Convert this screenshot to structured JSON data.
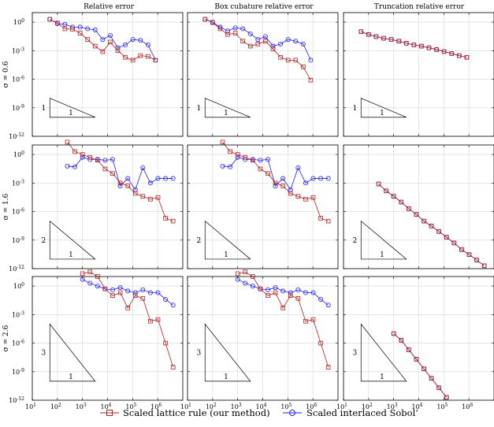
{
  "chart_data": {
    "type": "line",
    "column_titles": [
      "Relative error",
      "Box cubature relative error",
      "Truncation relative error"
    ],
    "row_labels": [
      "σ = 0.6",
      "σ = 1.6",
      "σ = 2.6"
    ],
    "x_scale": "log",
    "y_scale": "log",
    "xlim": [
      10,
      10000000
    ],
    "ylim": [
      1e-12,
      10
    ],
    "x_ticks": [
      "10^1",
      "10^2",
      "10^3",
      "10^4",
      "10^5",
      "10^6"
    ],
    "y_ticks": [
      "10^-12",
      "10^-9",
      "10^-6",
      "10^-3",
      "10^0"
    ],
    "grid": true,
    "legend_position": "bottom-center",
    "series_names": [
      "Scaled lattice rule (our method)",
      "Scaled interlaced Sobol’"
    ],
    "series_colors": [
      "#b22222",
      "#2020ff"
    ],
    "panels": [
      {
        "row": 0,
        "col": 0,
        "triangle": {
          "label_h": "1",
          "label_v": "1",
          "x0": 50,
          "x1": 3200,
          "y_top": 1e-08,
          "y_bottom": 1e-10
        },
        "series": [
          {
            "x": [
              50,
              100,
              200,
              400,
              800,
              1600,
              3200,
              6400,
              12800,
              25600,
              51200,
              102400,
              204800,
              409600,
              819200
            ],
            "y": [
              2,
              0.8,
              0.2,
              0.18,
              0.07,
              0.015,
              0.003,
              0.0008,
              0.008,
              0.001,
              0.0002,
              0.0001,
              0.0003,
              0.00025,
              0.0001
            ]
          },
          {
            "x": [
              50,
              100,
              200,
              400,
              800,
              1600,
              3200,
              6400,
              12800,
              25600,
              51200,
              102400,
              204800,
              409600,
              819200
            ],
            "y": [
              2,
              0.7,
              0.6,
              0.3,
              0.3,
              0.2,
              0.15,
              0.015,
              0.04,
              0.002,
              0.004,
              0.015,
              0.012,
              0.004,
              0.0001
            ]
          }
        ]
      },
      {
        "row": 0,
        "col": 1,
        "triangle": {
          "label_h": "1",
          "label_v": "1",
          "x0": 50,
          "x1": 3200,
          "y_top": 1e-08,
          "y_bottom": 1e-10
        },
        "series": [
          {
            "x": [
              50,
              100,
              200,
              400,
              800,
              1600,
              3200,
              6400,
              12800,
              25600,
              51200,
              102400,
              204800,
              409600,
              819200
            ],
            "y": [
              2,
              0.9,
              0.2,
              0.05,
              0.07,
              0.01,
              0.003,
              0.005,
              0.01,
              0.0015,
              0.0002,
              0.0001,
              0.0001,
              2e-05,
              8e-07
            ]
          },
          {
            "x": [
              50,
              100,
              200,
              400,
              800,
              1600,
              3200,
              6400,
              12800,
              25600,
              51200,
              102400,
              204800,
              409600,
              819200
            ],
            "y": [
              2,
              1,
              0.3,
              0.12,
              0.25,
              0.2,
              0.06,
              0.015,
              0.03,
              0.003,
              0.005,
              0.015,
              0.01,
              0.005,
              0.0001
            ]
          }
        ]
      },
      {
        "row": 0,
        "col": 2,
        "triangle": {
          "label_h": "1",
          "label_v": "1",
          "x0": 50,
          "x1": 3200,
          "y_top": 1e-08,
          "y_bottom": 1e-10
        },
        "series": [
          {
            "x": [
              50,
              100,
              200,
              400,
              800,
              1600,
              3200,
              6400,
              12800,
              25600,
              51200,
              102400,
              204800,
              409600,
              819200
            ],
            "y": [
              0.1,
              0.05,
              0.03,
              0.02,
              0.015,
              0.01,
              0.006,
              0.004,
              0.003,
              0.002,
              0.0013,
              0.0008,
              0.0005,
              0.0003,
              0.0002
            ]
          },
          {
            "x": [
              50,
              100,
              200,
              400,
              800,
              1600,
              3200,
              6400,
              12800,
              25600,
              51200,
              102400,
              204800,
              409600,
              819200
            ],
            "y": [
              0.1,
              0.05,
              0.03,
              0.02,
              0.015,
              0.01,
              0.006,
              0.004,
              0.003,
              0.002,
              0.0013,
              0.0008,
              0.0005,
              0.0003,
              0.0002
            ]
          }
        ]
      },
      {
        "row": 1,
        "col": 0,
        "triangle": {
          "label_h": "1",
          "label_v": "2",
          "x0": 50,
          "x1": 3200,
          "y_top": 1e-07,
          "y_bottom": 1e-11
        },
        "series": [
          {
            "x": [
              250,
              500,
              1000,
              2000,
              4000,
              8000,
              16000,
              32000,
              64000,
              128000,
              256000,
              512000,
              1024000,
              2048000,
              4096000
            ],
            "y": [
              20,
              2,
              1,
              0.5,
              0.25,
              0.03,
              0.01,
              0.001,
              0.0005,
              8e-05,
              4e-05,
              2e-05,
              3e-05,
              2e-07,
              1e-07
            ]
          },
          {
            "x": [
              250,
              500,
              1000,
              2000,
              4000,
              8000,
              16000,
              32000,
              64000,
              128000,
              256000,
              512000,
              1024000,
              2048000,
              4096000
            ],
            "y": [
              0.06,
              0.05,
              0.5,
              0.3,
              0.3,
              0.25,
              0.3,
              0.0005,
              0.003,
              0.0002,
              0.04,
              0.001,
              0.003,
              0.003,
              0.003
            ]
          }
        ]
      },
      {
        "row": 1,
        "col": 1,
        "triangle": {
          "label_h": "1",
          "label_v": "2",
          "x0": 50,
          "x1": 3200,
          "y_top": 1e-07,
          "y_bottom": 1e-11
        },
        "series": [
          {
            "x": [
              250,
              500,
              1000,
              2000,
              4000,
              8000,
              16000,
              32000,
              64000,
              128000,
              256000,
              512000,
              1024000,
              2048000,
              4096000
            ],
            "y": [
              20,
              2,
              1,
              0.5,
              0.25,
              0.03,
              0.01,
              0.001,
              0.0005,
              8e-05,
              4e-05,
              2e-05,
              3e-05,
              2e-07,
              1e-07
            ]
          },
          {
            "x": [
              250,
              500,
              1000,
              2000,
              4000,
              8000,
              16000,
              32000,
              64000,
              128000,
              256000,
              512000,
              1024000,
              2048000,
              4096000
            ],
            "y": [
              0.06,
              0.05,
              0.5,
              0.3,
              0.3,
              0.25,
              0.3,
              0.0005,
              0.003,
              0.0002,
              0.04,
              0.001,
              0.003,
              0.003,
              0.003
            ]
          }
        ]
      },
      {
        "row": 1,
        "col": 2,
        "triangle": {
          "label_h": "1",
          "label_v": "2",
          "x0": 50,
          "x1": 3200,
          "y_top": 1e-07,
          "y_bottom": 1e-11
        },
        "series": [
          {
            "x": [
              250,
              500,
              1000,
              2000,
              4000,
              8000,
              16000,
              32000,
              64000,
              128000,
              256000,
              512000,
              1024000,
              2048000,
              4096000
            ],
            "y": [
              0.0008,
              0.00015,
              4e-05,
              1e-05,
              2e-06,
              5e-07,
              1e-07,
              3e-08,
              8e-09,
              2e-09,
              5e-10,
              1e-10,
              3e-11,
              8e-12,
              2e-12
            ]
          },
          {
            "x": [
              250,
              500,
              1000,
              2000,
              4000,
              8000,
              16000,
              32000,
              64000,
              128000,
              256000,
              512000,
              1024000,
              2048000,
              4096000
            ],
            "y": [
              0.0008,
              0.00015,
              4e-05,
              1e-05,
              2e-06,
              5e-07,
              1e-07,
              3e-08,
              8e-09,
              2e-09,
              5e-10,
              1e-10,
              3e-11,
              8e-12,
              2e-12
            ]
          }
        ]
      },
      {
        "row": 2,
        "col": 0,
        "triangle": {
          "label_h": "1",
          "label_v": "3",
          "x0": 50,
          "x1": 3200,
          "y_top": 0.0001,
          "y_bottom": 1e-10
        },
        "series": [
          {
            "x": [
              1000,
              2000,
              4000,
              8000,
              16000,
              32000,
              64000,
              128000,
              256000,
              512000,
              1024000,
              2048000,
              4096000
            ],
            "y": [
              20,
              30,
              10,
              0.5,
              0.1,
              0.2,
              0.005,
              0.1,
              0.05,
              0.0002,
              0.0003,
              1e-06,
              3e-09
            ]
          },
          {
            "x": [
              1000,
              2000,
              4000,
              8000,
              16000,
              32000,
              64000,
              128000,
              256000,
              512000,
              1024000,
              2048000,
              4096000
            ],
            "y": [
              5,
              2,
              1,
              0.5,
              0.4,
              0.7,
              0.3,
              0.2,
              0.4,
              0.2,
              0.2,
              0.04,
              0.01
            ]
          }
        ]
      },
      {
        "row": 2,
        "col": 1,
        "triangle": {
          "label_h": "1",
          "label_v": "3",
          "x0": 50,
          "x1": 3200,
          "y_top": 0.0001,
          "y_bottom": 1e-10
        },
        "series": [
          {
            "x": [
              1000,
              2000,
              4000,
              8000,
              16000,
              32000,
              64000,
              128000,
              256000,
              512000,
              1024000,
              2048000,
              4096000
            ],
            "y": [
              20,
              30,
              10,
              0.5,
              0.1,
              0.2,
              0.005,
              0.1,
              0.05,
              0.0002,
              0.0003,
              1e-06,
              3e-09
            ]
          },
          {
            "x": [
              1000,
              2000,
              4000,
              8000,
              16000,
              32000,
              64000,
              128000,
              256000,
              512000,
              1024000,
              2048000,
              4096000
            ],
            "y": [
              5,
              2,
              1,
              0.5,
              0.4,
              0.7,
              0.3,
              0.2,
              0.4,
              0.2,
              0.2,
              0.04,
              0.01
            ]
          }
        ]
      },
      {
        "row": 2,
        "col": 2,
        "triangle": {
          "label_h": "1",
          "label_v": "3",
          "x0": 50,
          "x1": 3200,
          "y_top": 0.0001,
          "y_bottom": 1e-10
        },
        "series": [
          {
            "x": [
              1000,
              2000,
              4000,
              8000,
              16000,
              32000,
              64000,
              128000
            ],
            "y": [
              1e-05,
              2e-06,
              2e-07,
              2e-08,
              2e-09,
              2e-10,
              2e-11,
              2e-12
            ]
          },
          {
            "x": [
              1000,
              2000,
              4000,
              8000,
              16000,
              32000,
              64000,
              128000
            ],
            "y": [
              1e-05,
              2e-06,
              2e-07,
              2e-08,
              2e-09,
              2e-10,
              2e-11,
              2e-12
            ]
          }
        ]
      }
    ]
  }
}
